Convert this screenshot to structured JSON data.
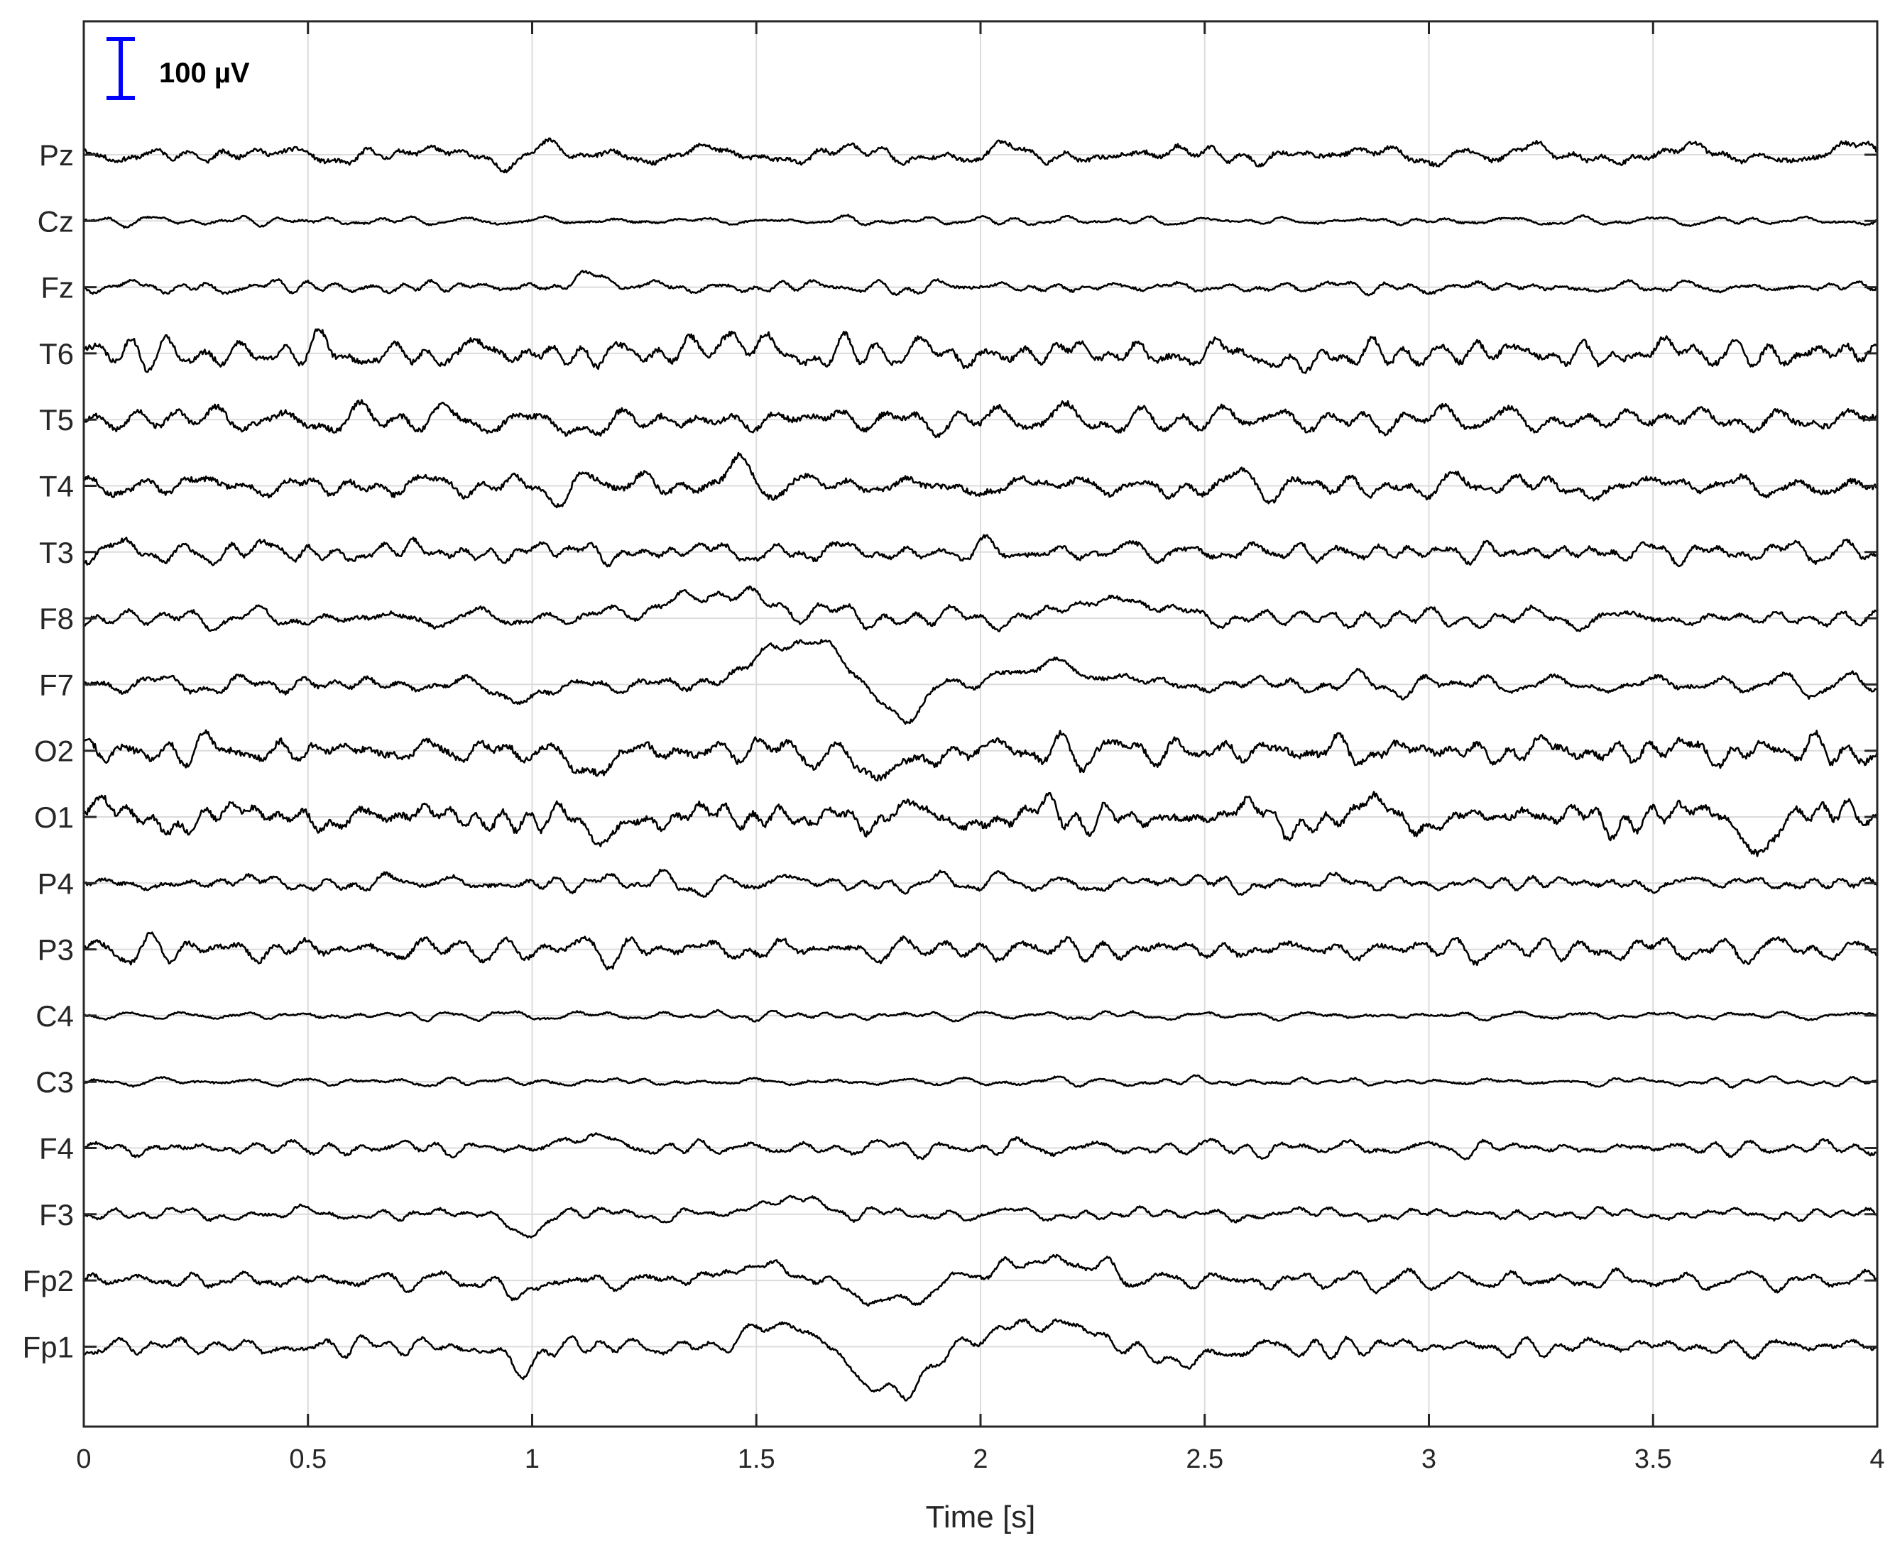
{
  "chart_data": {
    "type": "line",
    "xlabel": "Time [s]",
    "ylabel": "",
    "xlim": [
      0,
      4
    ],
    "x_ticks": [
      "0",
      "0.5",
      "1",
      "1.5",
      "2",
      "2.5",
      "3",
      "3.5",
      "4"
    ],
    "x_tick_values": [
      0,
      0.5,
      1,
      1.5,
      2,
      2.5,
      3,
      3.5,
      4
    ],
    "channels": [
      "Pz",
      "Cz",
      "Fz",
      "T6",
      "T5",
      "T4",
      "T3",
      "F8",
      "F7",
      "O2",
      "O1",
      "P4",
      "P3",
      "C4",
      "C3",
      "F4",
      "F3",
      "Fp2",
      "Fp1"
    ],
    "scale_bar": {
      "label": "100 µV",
      "value_uV": 100,
      "color": "#0000ff"
    },
    "grid": true,
    "trace_color": "#000000",
    "series": [
      {
        "name": "Pz",
        "amplitude_uV": 20,
        "seed": 11,
        "events": []
      },
      {
        "name": "Cz",
        "amplitude_uV": 8,
        "seed": 23,
        "events": []
      },
      {
        "name": "Fz",
        "amplitude_uV": 12,
        "seed": 37,
        "events": [
          {
            "t": 1.13,
            "uV": 20,
            "w": 0.06
          }
        ]
      },
      {
        "name": "T6",
        "amplitude_uV": 26,
        "seed": 41,
        "events": [
          {
            "t": 1.45,
            "uV": 30,
            "w": 0.05
          },
          {
            "t": 2.7,
            "uV": -30,
            "w": 0.05
          }
        ]
      },
      {
        "name": "T5",
        "amplitude_uV": 26,
        "seed": 53,
        "events": [
          {
            "t": 1.13,
            "uV": -25,
            "w": 0.05
          }
        ]
      },
      {
        "name": "T4",
        "amplitude_uV": 24,
        "seed": 67,
        "events": [
          {
            "t": 1.45,
            "uV": 30,
            "w": 0.05
          }
        ]
      },
      {
        "name": "T3",
        "amplitude_uV": 20,
        "seed": 71,
        "events": []
      },
      {
        "name": "F8",
        "amplitude_uV": 18,
        "seed": 83,
        "events": [
          {
            "t": 1.42,
            "uV": 40,
            "w": 0.18
          },
          {
            "t": 2.3,
            "uV": 35,
            "w": 0.12
          }
        ]
      },
      {
        "name": "F7",
        "amplitude_uV": 18,
        "seed": 97,
        "events": [
          {
            "t": 0.98,
            "uV": -35,
            "w": 0.05
          },
          {
            "t": 1.6,
            "uV": 80,
            "w": 0.12
          },
          {
            "t": 1.82,
            "uV": -55,
            "w": 0.08
          },
          {
            "t": 2.15,
            "uV": 30,
            "w": 0.15
          }
        ]
      },
      {
        "name": "O2",
        "amplitude_uV": 30,
        "seed": 101,
        "events": [
          {
            "t": 1.13,
            "uV": -35,
            "w": 0.06
          },
          {
            "t": 1.78,
            "uV": -45,
            "w": 0.07
          }
        ]
      },
      {
        "name": "O1",
        "amplitude_uV": 30,
        "seed": 113,
        "events": [
          {
            "t": 1.13,
            "uV": -35,
            "w": 0.06
          },
          {
            "t": 3.73,
            "uV": -40,
            "w": 0.05
          }
        ]
      },
      {
        "name": "P4",
        "amplitude_uV": 16,
        "seed": 127,
        "events": []
      },
      {
        "name": "P3",
        "amplitude_uV": 22,
        "seed": 131,
        "events": []
      },
      {
        "name": "C4",
        "amplitude_uV": 8,
        "seed": 149,
        "events": []
      },
      {
        "name": "C3",
        "amplitude_uV": 8,
        "seed": 151,
        "events": []
      },
      {
        "name": "F4",
        "amplitude_uV": 14,
        "seed": 163,
        "events": [
          {
            "t": 1.13,
            "uV": 22,
            "w": 0.06
          }
        ]
      },
      {
        "name": "F3",
        "amplitude_uV": 12,
        "seed": 173,
        "events": [
          {
            "t": 0.98,
            "uV": -30,
            "w": 0.05
          },
          {
            "t": 1.58,
            "uV": 30,
            "w": 0.08
          }
        ]
      },
      {
        "name": "Fp2",
        "amplitude_uV": 16,
        "seed": 181,
        "events": [
          {
            "t": 0.98,
            "uV": -25,
            "w": 0.05
          },
          {
            "t": 1.5,
            "uV": 25,
            "w": 0.1
          },
          {
            "t": 1.8,
            "uV": -40,
            "w": 0.1
          },
          {
            "t": 2.15,
            "uV": 35,
            "w": 0.15
          }
        ]
      },
      {
        "name": "Fp1",
        "amplitude_uV": 16,
        "seed": 193,
        "events": [
          {
            "t": 0.98,
            "uV": -35,
            "w": 0.05
          },
          {
            "t": 1.55,
            "uV": 35,
            "w": 0.1
          },
          {
            "t": 1.8,
            "uV": -80,
            "w": 0.1
          },
          {
            "t": 2.15,
            "uV": 40,
            "w": 0.15
          },
          {
            "t": 2.45,
            "uV": -30,
            "w": 0.1
          }
        ]
      }
    ]
  }
}
